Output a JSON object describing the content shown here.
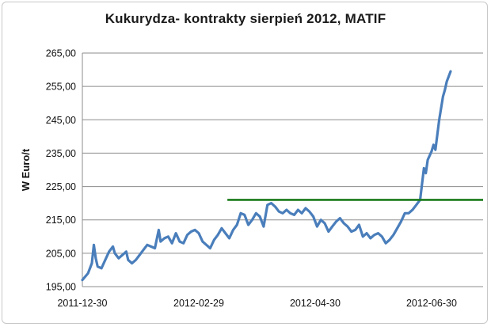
{
  "chart_data": {
    "type": "line",
    "title": "Kukurydza- kontrakty sierpień 2012, MATIF",
    "xlabel": "",
    "ylabel": "W Euro/t",
    "xlim": [
      "2011-12-30",
      "2012-07-27"
    ],
    "ylim": [
      195,
      265
    ],
    "grid": {
      "horizontal": true,
      "vertical": false
    },
    "y_ticks": [
      {
        "value": 195,
        "label": "195,00"
      },
      {
        "value": 205,
        "label": "205,00"
      },
      {
        "value": 215,
        "label": "215,00"
      },
      {
        "value": 225,
        "label": "225,00"
      },
      {
        "value": 235,
        "label": "235,00"
      },
      {
        "value": 245,
        "label": "245,00"
      },
      {
        "value": 255,
        "label": "255,00"
      },
      {
        "value": 265,
        "label": "265,00"
      }
    ],
    "x_ticks": [
      {
        "value": "2011-12-30",
        "label": "2011-12-30"
      },
      {
        "value": "2012-02-29",
        "label": "2012-02-29"
      },
      {
        "value": "2012-04-30",
        "label": "2012-04-30"
      },
      {
        "value": "2012-06-30",
        "label": "2012-06-30"
      }
    ],
    "series": [
      {
        "color": "#4a7ebb",
        "points": [
          [
            "2011-12-30",
            197.0
          ],
          [
            "2012-01-02",
            199.0
          ],
          [
            "2012-01-04",
            202.0
          ],
          [
            "2012-01-05",
            207.5
          ],
          [
            "2012-01-06",
            203.5
          ],
          [
            "2012-01-07",
            201.0
          ],
          [
            "2012-01-09",
            200.5
          ],
          [
            "2012-01-11",
            203.0
          ],
          [
            "2012-01-13",
            205.5
          ],
          [
            "2012-01-15",
            207.0
          ],
          [
            "2012-01-16",
            205.0
          ],
          [
            "2012-01-18",
            203.5
          ],
          [
            "2012-01-20",
            204.5
          ],
          [
            "2012-01-22",
            205.5
          ],
          [
            "2012-01-23",
            203.0
          ],
          [
            "2012-01-25",
            202.0
          ],
          [
            "2012-01-27",
            203.0
          ],
          [
            "2012-01-29",
            204.5
          ],
          [
            "2012-01-31",
            206.0
          ],
          [
            "2012-02-02",
            207.5
          ],
          [
            "2012-02-04",
            207.0
          ],
          [
            "2012-02-06",
            206.5
          ],
          [
            "2012-02-08",
            212.0
          ],
          [
            "2012-02-09",
            208.5
          ],
          [
            "2012-02-11",
            209.5
          ],
          [
            "2012-02-13",
            210.0
          ],
          [
            "2012-02-15",
            208.0
          ],
          [
            "2012-02-17",
            211.0
          ],
          [
            "2012-02-19",
            208.5
          ],
          [
            "2012-02-21",
            208.0
          ],
          [
            "2012-02-23",
            210.5
          ],
          [
            "2012-02-25",
            211.5
          ],
          [
            "2012-02-27",
            212.0
          ],
          [
            "2012-02-29",
            211.0
          ],
          [
            "2012-03-02",
            208.5
          ],
          [
            "2012-03-04",
            207.5
          ],
          [
            "2012-03-06",
            206.5
          ],
          [
            "2012-03-08",
            209.0
          ],
          [
            "2012-03-10",
            210.5
          ],
          [
            "2012-03-12",
            212.5
          ],
          [
            "2012-03-14",
            211.0
          ],
          [
            "2012-03-16",
            209.5
          ],
          [
            "2012-03-18",
            212.0
          ],
          [
            "2012-03-20",
            213.5
          ],
          [
            "2012-03-22",
            217.0
          ],
          [
            "2012-03-24",
            216.5
          ],
          [
            "2012-03-26",
            213.5
          ],
          [
            "2012-03-28",
            215.0
          ],
          [
            "2012-03-30",
            217.0
          ],
          [
            "2012-04-01",
            216.0
          ],
          [
            "2012-04-03",
            213.0
          ],
          [
            "2012-04-05",
            219.5
          ],
          [
            "2012-04-07",
            220.0
          ],
          [
            "2012-04-09",
            219.0
          ],
          [
            "2012-04-11",
            217.5
          ],
          [
            "2012-04-13",
            217.0
          ],
          [
            "2012-04-15",
            218.0
          ],
          [
            "2012-04-17",
            217.0
          ],
          [
            "2012-04-19",
            216.5
          ],
          [
            "2012-04-21",
            218.0
          ],
          [
            "2012-04-23",
            217.0
          ],
          [
            "2012-04-25",
            218.5
          ],
          [
            "2012-04-27",
            217.5
          ],
          [
            "2012-04-29",
            216.0
          ],
          [
            "2012-05-01",
            213.0
          ],
          [
            "2012-05-03",
            215.0
          ],
          [
            "2012-05-05",
            214.0
          ],
          [
            "2012-05-07",
            211.5
          ],
          [
            "2012-05-09",
            213.0
          ],
          [
            "2012-05-11",
            214.5
          ],
          [
            "2012-05-13",
            215.5
          ],
          [
            "2012-05-15",
            214.0
          ],
          [
            "2012-05-17",
            213.0
          ],
          [
            "2012-05-19",
            211.5
          ],
          [
            "2012-05-21",
            212.0
          ],
          [
            "2012-05-23",
            213.5
          ],
          [
            "2012-05-25",
            210.0
          ],
          [
            "2012-05-27",
            211.0
          ],
          [
            "2012-05-29",
            209.5
          ],
          [
            "2012-05-31",
            210.5
          ],
          [
            "2012-06-02",
            211.0
          ],
          [
            "2012-06-04",
            210.0
          ],
          [
            "2012-06-06",
            208.0
          ],
          [
            "2012-06-08",
            209.0
          ],
          [
            "2012-06-10",
            210.5
          ],
          [
            "2012-06-12",
            212.5
          ],
          [
            "2012-06-14",
            214.5
          ],
          [
            "2012-06-16",
            217.0
          ],
          [
            "2012-06-18",
            217.0
          ],
          [
            "2012-06-20",
            218.0
          ],
          [
            "2012-06-22",
            219.5
          ],
          [
            "2012-06-24",
            221.0
          ],
          [
            "2012-06-26",
            230.5
          ],
          [
            "2012-06-27",
            229.0
          ],
          [
            "2012-06-28",
            233.0
          ],
          [
            "2012-06-30",
            235.5
          ],
          [
            "2012-07-01",
            237.5
          ],
          [
            "2012-07-02",
            236.0
          ],
          [
            "2012-07-04",
            245.0
          ],
          [
            "2012-07-06",
            252.0
          ],
          [
            "2012-07-07",
            254.0
          ],
          [
            "2012-07-08",
            256.5
          ],
          [
            "2012-07-10",
            259.5
          ]
        ]
      }
    ],
    "reference_line": {
      "y": 221,
      "x_start": "2012-03-15",
      "x_end": "2012-07-27",
      "color": "#1a7a1a"
    }
  }
}
